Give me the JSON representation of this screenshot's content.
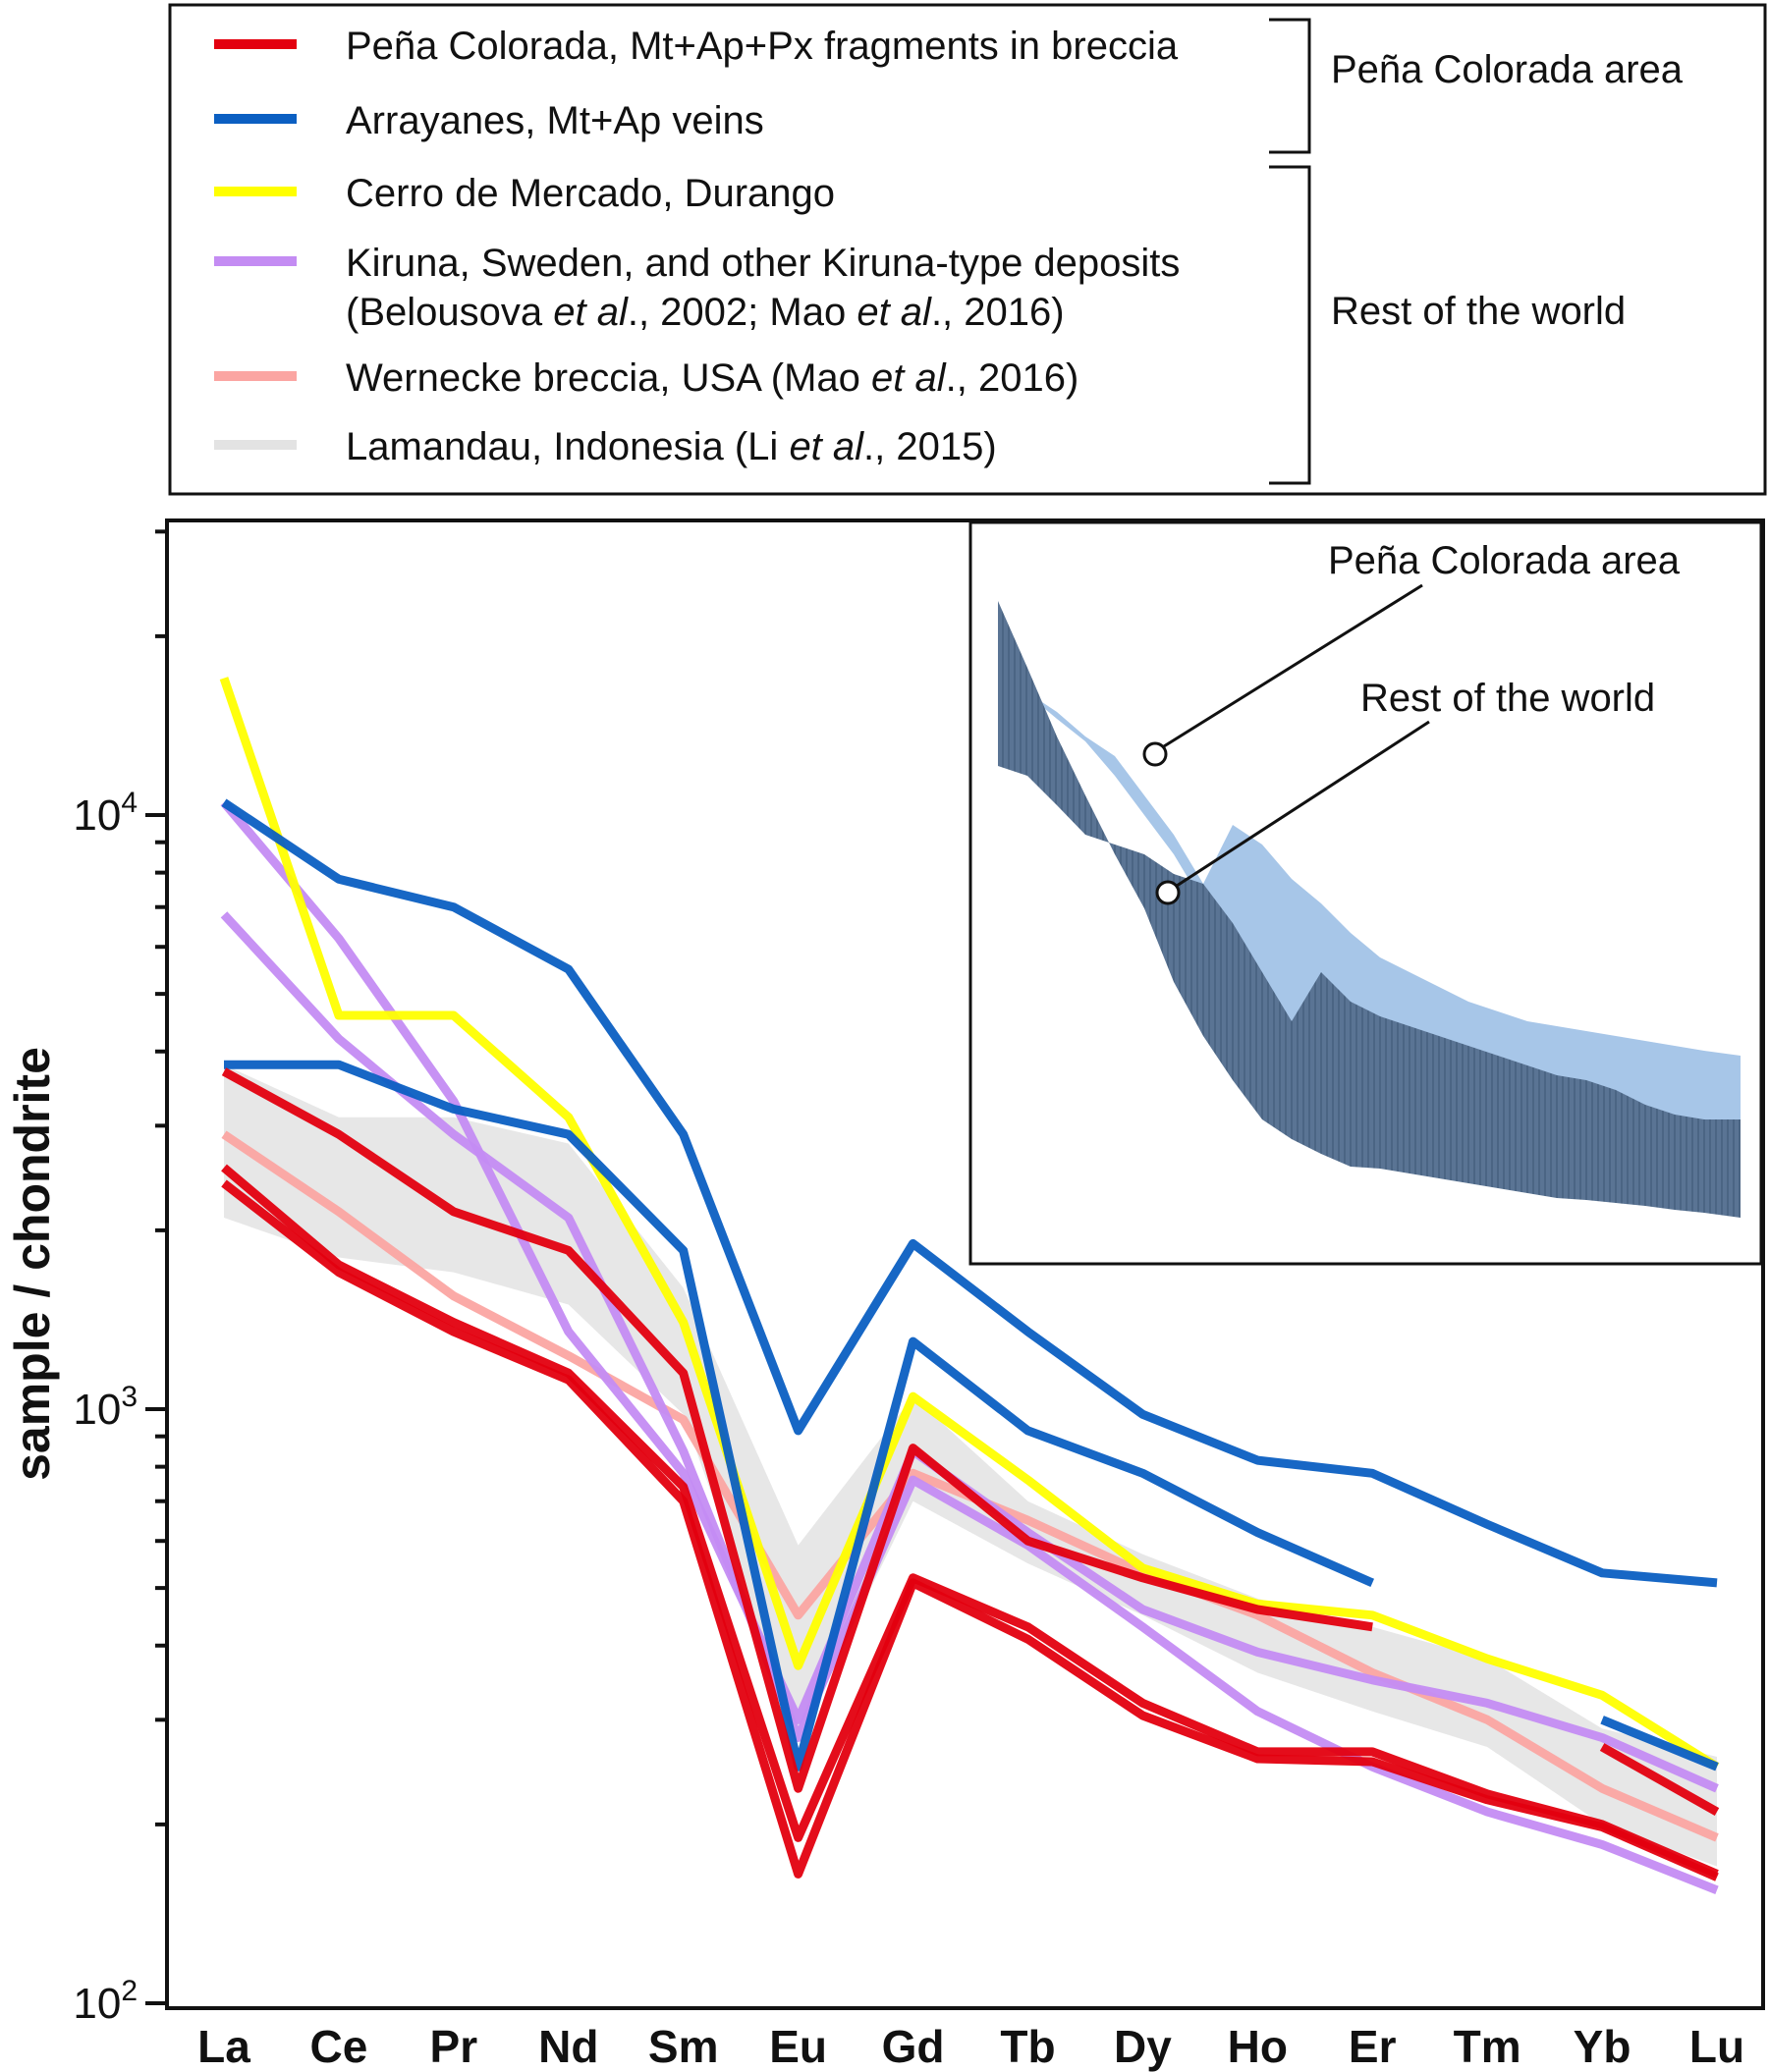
{
  "legend": {
    "items": [
      {
        "segments": [
          {
            "text": "Peña Colorada, Mt+Ap+Px fragments in breccia"
          }
        ],
        "color": "#e3000f"
      },
      {
        "segments": [
          {
            "text": "Arrayanes, Mt+Ap veins"
          }
        ],
        "color": "#0b5fc2"
      },
      {
        "segments": [
          {
            "text": "Cerro de Mercado, Durango"
          }
        ],
        "color": "#ffff00"
      },
      {
        "segments": [
          {
            "text": "Kiruna, Sweden, and other Kiruna-type deposits"
          }
        ],
        "color": "#c48cf3"
      },
      {
        "segments": [
          {
            "text": "(Belousova "
          },
          {
            "text": "et al",
            "italic": true
          },
          {
            "text": "., 2002; Mao "
          },
          {
            "text": "et al",
            "italic": true
          },
          {
            "text": "., 2016)"
          }
        ],
        "color": null
      },
      {
        "segments": [
          {
            "text": "Wernecke breccia, USA (Mao "
          },
          {
            "text": "et al",
            "italic": true
          },
          {
            "text": "., 2016)"
          }
        ],
        "color": "#fba5a2"
      },
      {
        "segments": [
          {
            "text": "Lamandau, Indonesia (Li "
          },
          {
            "text": "et al",
            "italic": true
          },
          {
            "text": "., 2015)"
          }
        ],
        "color": "#e3e3e3"
      }
    ],
    "group_labels": [
      "Peña Colorada area",
      "Rest of the world"
    ]
  },
  "inset": {
    "labels": [
      "Peña Colorada area",
      "Rest of the world"
    ],
    "colors": {
      "pena_band": "#a7c6e8",
      "world_band": "#5a7494"
    }
  },
  "chart_data": {
    "type": "line",
    "y_scale": "log",
    "ylim": [
      100,
      30000
    ],
    "yticks": [
      {
        "value": 100,
        "mantissa": "10",
        "exp": "2"
      },
      {
        "value": 1000,
        "mantissa": "10",
        "exp": "3"
      },
      {
        "value": 10000,
        "mantissa": "10",
        "exp": "4"
      }
    ],
    "ylabel": "sample / chondrite",
    "xlabel": "",
    "categories": [
      "La",
      "Ce",
      "Pr",
      "Nd",
      "Sm",
      "Eu",
      "Gd",
      "Tb",
      "Dy",
      "Ho",
      "Er",
      "Tm",
      "Yb",
      "Lu"
    ],
    "bands": [
      {
        "group": "Lamandau, Indonesia",
        "color": "#e3e3e3",
        "upper": [
          3800,
          3100,
          3100,
          2800,
          1600,
          590,
          1050,
          700,
          570,
          480,
          430,
          380,
          290,
          260
        ],
        "lower": [
          2100,
          1800,
          1700,
          1500,
          980,
          280,
          700,
          550,
          450,
          360,
          310,
          270,
          200,
          170
        ]
      }
    ],
    "series": [
      {
        "group": "Wernecke breccia, USA",
        "color": "#fba5a2",
        "values": [
          2900,
          2150,
          1550,
          1230,
          960,
          450,
          780,
          650,
          530,
          450,
          360,
          300,
          230,
          190
        ]
      },
      {
        "group": "Kiruna, Sweden, and other Kiruna-type deposits",
        "color": "#c48cf3",
        "values": [
          10500,
          6200,
          3300,
          1350,
          780,
          300,
          850,
          620,
          460,
          390,
          350,
          320,
          280,
          230
        ]
      },
      {
        "group": "Kiruna, Sweden, and other Kiruna-type deposits",
        "color": "#c48cf3",
        "values": [
          6800,
          4200,
          2900,
          2100,
          850,
          280,
          760,
          590,
          430,
          310,
          250,
          210,
          185,
          155
        ]
      },
      {
        "group": "Cerro de Mercado, Durango",
        "color": "#ffff00",
        "values": [
          17000,
          4600,
          4600,
          3100,
          1400,
          370,
          1050,
          760,
          540,
          470,
          450,
          380,
          330,
          250
        ]
      },
      {
        "group": "Arrayanes, Mt+Ap veins",
        "color": "#0b5fc2",
        "values": [
          10500,
          7800,
          7000,
          5500,
          2900,
          920,
          1900,
          1350,
          980,
          820,
          780,
          640,
          530,
          510
        ]
      },
      {
        "group": "Arrayanes, Mt+Ap veins",
        "color": "#0b5fc2",
        "values": [
          3800,
          3800,
          3200,
          2900,
          1850,
          250,
          1300,
          920,
          780,
          620,
          510,
          null,
          null,
          null
        ]
      },
      {
        "group": "Arrayanes, Mt+Ap veins",
        "color": "#0b5fc2",
        "values": [
          null,
          null,
          null,
          null,
          null,
          null,
          null,
          null,
          null,
          null,
          null,
          null,
          300,
          250
        ]
      },
      {
        "group": "Peña Colorada, Mt+Ap+Px fragments in breccia",
        "color": "#e3000f",
        "values": [
          3700,
          2900,
          2150,
          1850,
          1150,
          230,
          860,
          600,
          520,
          460,
          430,
          null,
          null,
          null
        ]
      },
      {
        "group": "Peña Colorada, Mt+Ap+Px fragments in breccia",
        "color": "#e3000f",
        "values": [
          null,
          null,
          null,
          null,
          null,
          null,
          null,
          null,
          null,
          null,
          null,
          null,
          270,
          210
        ]
      },
      {
        "group": "Peña Colorada, Mt+Ap+Px fragments in breccia",
        "color": "#e3000f",
        "values": [
          2550,
          1750,
          1400,
          1150,
          740,
          190,
          520,
          430,
          320,
          265,
          265,
          225,
          200,
          165
        ]
      },
      {
        "group": "Peña Colorada, Mt+Ap+Px fragments in breccia",
        "color": "#e3000f",
        "values": [
          2400,
          1700,
          1350,
          1120,
          700,
          165,
          510,
          410,
          305,
          258,
          255,
          220,
          198,
          163
        ]
      }
    ]
  }
}
